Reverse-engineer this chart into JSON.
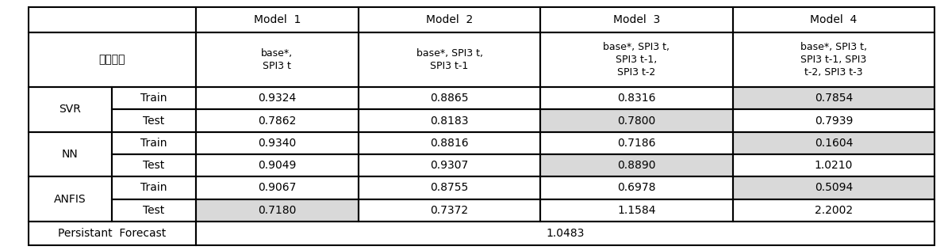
{
  "col_headers_left_empty": "",
  "model_headers": [
    "Model  1",
    "Model  2",
    "Model  3",
    "Model  4"
  ],
  "input_label": "입력자료",
  "col_subheaders": [
    "base*,\nSPI3 t",
    "base*, SPI3 t,\nSPI3 t-1",
    "base*, SPI3 t,\nSPI3 t-1,\nSPI3 t-2",
    "base*, SPI3 t,\nSPI3 t-1, SPI3\nt-2, SPI3 t-3"
  ],
  "rows": [
    {
      "group": "SVR",
      "type": "Train",
      "vals": [
        "0.9324",
        "0.8865",
        "0.8316",
        "0.7854"
      ],
      "hl": [
        false,
        false,
        false,
        true
      ]
    },
    {
      "group": "SVR",
      "type": "Test",
      "vals": [
        "0.7862",
        "0.8183",
        "0.7800",
        "0.7939"
      ],
      "hl": [
        false,
        false,
        true,
        false
      ]
    },
    {
      "group": "NN",
      "type": "Train",
      "vals": [
        "0.9340",
        "0.8816",
        "0.7186",
        "0.1604"
      ],
      "hl": [
        false,
        false,
        false,
        true
      ]
    },
    {
      "group": "NN",
      "type": "Test",
      "vals": [
        "0.9049",
        "0.9307",
        "0.8890",
        "1.0210"
      ],
      "hl": [
        false,
        false,
        true,
        false
      ]
    },
    {
      "group": "ANFIS",
      "type": "Train",
      "vals": [
        "0.9067",
        "0.8755",
        "0.6978",
        "0.5094"
      ],
      "hl": [
        false,
        false,
        false,
        true
      ]
    },
    {
      "group": "ANFIS",
      "type": "Test",
      "vals": [
        "0.7180",
        "0.7372",
        "1.1584",
        "2.2002"
      ],
      "hl": [
        true,
        false,
        false,
        false
      ]
    }
  ],
  "persistant_label": "Persistant  Forecast",
  "persistant_value": "1.0483",
  "highlight_color": "#d9d9d9",
  "border_color": "#000000",
  "bg_color": "#ffffff",
  "font_size": 10,
  "bold_font_size": 11
}
